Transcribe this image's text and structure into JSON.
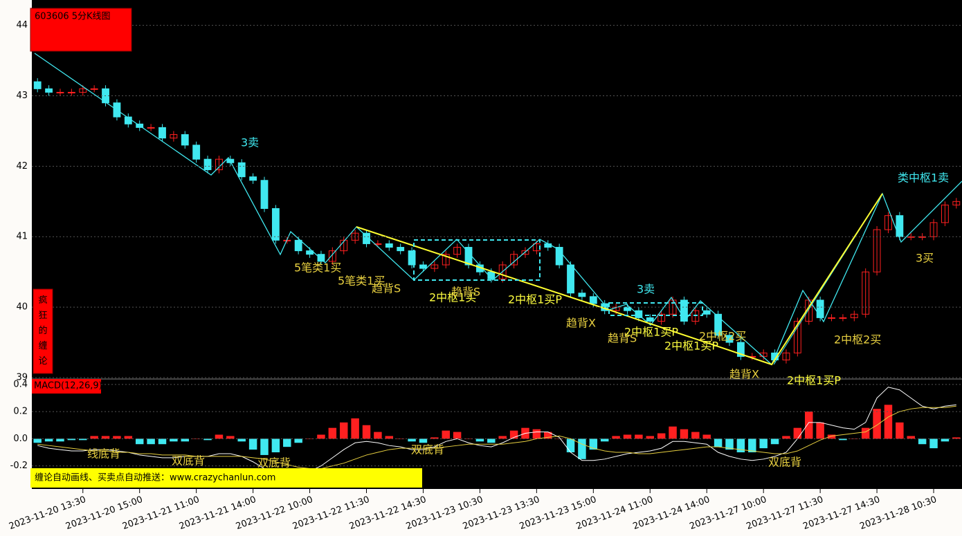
{
  "chart_data": [
    {
      "type": "candlestick",
      "title": "603606 5分K线图",
      "side_label": "疯狂的缠论",
      "categories": [
        null,
        null,
        null,
        null,
        "2023-11-20 13:30",
        null,
        null,
        null,
        null,
        "2023-11-20 15:00",
        null,
        null,
        null,
        null,
        "2023-11-21 11:00",
        null,
        null,
        null,
        null,
        "2023-11-21 14:00",
        null,
        null,
        null,
        null,
        "2023-11-22 10:00",
        null,
        null,
        null,
        null,
        "2023-11-22 11:30",
        null,
        null,
        null,
        null,
        "2023-11-22 14:30",
        null,
        null,
        null,
        null,
        "2023-11-23 10:30",
        null,
        null,
        null,
        null,
        "2023-11-23 13:30",
        null,
        null,
        null,
        null,
        "2023-11-23 15:00",
        null,
        null,
        null,
        null,
        "2023-11-24 11:00",
        null,
        null,
        null,
        null,
        "2023-11-24 14:00",
        null,
        null,
        null,
        null,
        "2023-11-27 10:00",
        null,
        null,
        null,
        null,
        "2023-11-27 11:30",
        null,
        null,
        null,
        null,
        "2023-11-27 14:30",
        null,
        null,
        null,
        null,
        "2023-11-28 10:30",
        null,
        null
      ],
      "open": [
        43.2,
        43.1,
        43.05,
        43.05,
        43.05,
        43.1,
        43.1,
        42.9,
        42.7,
        42.6,
        42.55,
        42.55,
        42.4,
        42.45,
        42.3,
        42.1,
        41.95,
        42.1,
        42.05,
        41.85,
        41.8,
        41.4,
        40.95,
        40.95,
        40.8,
        40.75,
        40.65,
        40.8,
        40.95,
        41.05,
        40.9,
        40.9,
        40.85,
        40.8,
        40.6,
        40.55,
        40.6,
        40.75,
        40.85,
        40.6,
        40.5,
        40.4,
        40.6,
        40.75,
        40.8,
        40.9,
        40.85,
        40.6,
        40.2,
        40.15,
        40.05,
        39.95,
        40.0,
        39.95,
        39.85,
        39.8,
        39.9,
        40.1,
        39.8,
        39.95,
        39.9,
        39.6,
        39.5,
        39.3,
        39.3,
        39.35,
        39.25,
        39.35,
        39.8,
        40.1,
        39.85,
        39.85,
        39.85,
        39.9,
        40.5,
        41.1,
        41.3,
        41.0,
        41.0,
        41.0,
        41.2,
        41.45
      ],
      "high": [
        43.25,
        43.15,
        43.1,
        43.1,
        43.15,
        43.15,
        43.15,
        42.95,
        42.75,
        42.65,
        42.6,
        42.6,
        42.5,
        42.5,
        42.35,
        42.15,
        42.15,
        42.15,
        42.1,
        41.9,
        41.85,
        41.45,
        41.0,
        41.0,
        40.85,
        40.8,
        40.85,
        41.0,
        41.1,
        41.1,
        40.95,
        40.95,
        40.9,
        40.85,
        40.65,
        40.65,
        40.8,
        40.9,
        40.9,
        40.65,
        40.55,
        40.65,
        40.8,
        40.85,
        40.95,
        40.95,
        40.9,
        40.65,
        40.25,
        40.2,
        40.1,
        40.05,
        40.05,
        40.0,
        39.9,
        39.95,
        40.15,
        40.15,
        40.0,
        40.0,
        39.95,
        39.65,
        39.55,
        39.35,
        39.4,
        39.4,
        39.4,
        39.85,
        40.15,
        40.15,
        39.9,
        39.9,
        39.95,
        40.55,
        41.15,
        41.35,
        41.35,
        41.05,
        41.05,
        41.25,
        41.5,
        41.55
      ],
      "low": [
        43.05,
        43.0,
        43.0,
        43.0,
        43.0,
        43.05,
        42.85,
        42.65,
        42.55,
        42.5,
        42.5,
        42.35,
        42.35,
        42.25,
        42.05,
        41.9,
        41.9,
        42.0,
        41.8,
        41.75,
        41.35,
        40.9,
        40.9,
        40.75,
        40.7,
        40.6,
        40.6,
        40.75,
        40.9,
        40.85,
        40.85,
        40.8,
        40.75,
        40.55,
        40.5,
        40.5,
        40.55,
        40.7,
        40.55,
        40.45,
        40.35,
        40.35,
        40.55,
        40.7,
        40.75,
        40.8,
        40.55,
        40.15,
        40.1,
        40.0,
        39.9,
        39.9,
        39.9,
        39.8,
        39.75,
        39.75,
        39.85,
        39.75,
        39.75,
        39.85,
        39.55,
        39.45,
        39.25,
        39.25,
        39.25,
        39.2,
        39.2,
        39.3,
        39.75,
        39.8,
        39.8,
        39.8,
        39.8,
        39.85,
        40.45,
        41.05,
        40.95,
        40.95,
        40.95,
        40.95,
        41.15,
        41.4
      ],
      "close": [
        43.1,
        43.05,
        43.05,
        43.05,
        43.1,
        43.1,
        42.9,
        42.7,
        42.6,
        42.55,
        42.55,
        42.4,
        42.45,
        42.3,
        42.1,
        41.95,
        42.1,
        42.05,
        41.85,
        41.8,
        41.4,
        40.95,
        40.95,
        40.8,
        40.75,
        40.65,
        40.8,
        40.95,
        41.05,
        40.9,
        40.9,
        40.85,
        40.8,
        40.6,
        40.55,
        40.6,
        40.75,
        40.85,
        40.6,
        40.5,
        40.4,
        40.6,
        40.75,
        40.8,
        40.9,
        40.85,
        40.6,
        40.2,
        40.15,
        40.05,
        39.95,
        40.0,
        39.95,
        39.85,
        39.8,
        39.9,
        40.1,
        39.8,
        39.95,
        39.9,
        39.6,
        39.5,
        39.3,
        39.3,
        39.35,
        39.25,
        39.35,
        39.8,
        40.1,
        39.85,
        39.85,
        39.85,
        39.9,
        40.5,
        41.1,
        41.3,
        41.0,
        41.0,
        41.0,
        41.2,
        41.45,
        41.5
      ],
      "up_color": "#ff2020",
      "down_color": "#40e8f0",
      "ylim": [
        38.98,
        44.36
      ],
      "yticks": [
        39,
        40,
        41,
        42,
        43,
        44
      ],
      "grid": true,
      "annotations": [
        "3卖",
        "5笔类1买",
        "5笔类1买",
        "趋背S",
        "2中枢1买",
        "趋背S",
        "2中枢1买P",
        "趋背X",
        "3卖",
        "2中枢1买P",
        "趋背S",
        "2中枢1买P",
        "2中枢2买",
        "趋背X",
        "2中枢1买P",
        "2中枢2买",
        "类中枢1卖",
        "3买"
      ]
    },
    {
      "type": "macd",
      "title": "MACD(12,26,9)",
      "histogram": [
        -0.03,
        -0.02,
        -0.02,
        -0.01,
        -0.01,
        0.02,
        0.02,
        0.02,
        0.02,
        -0.04,
        -0.04,
        -0.04,
        -0.02,
        -0.02,
        0.0,
        -0.01,
        0.03,
        0.02,
        -0.02,
        -0.08,
        -0.12,
        -0.1,
        -0.06,
        -0.03,
        0.0,
        0.03,
        0.08,
        0.12,
        0.15,
        0.1,
        0.05,
        0.02,
        0.0,
        -0.02,
        -0.03,
        0.01,
        0.06,
        0.05,
        0.0,
        -0.02,
        -0.03,
        0.02,
        0.06,
        0.08,
        0.07,
        0.05,
        0.0,
        -0.1,
        -0.15,
        -0.08,
        -0.02,
        0.02,
        0.03,
        0.03,
        0.02,
        0.04,
        0.09,
        0.07,
        0.05,
        0.03,
        -0.06,
        -0.08,
        -0.1,
        -0.1,
        -0.07,
        -0.04,
        0.02,
        0.08,
        0.2,
        0.12,
        0.03,
        -0.01,
        0.0,
        0.08,
        0.22,
        0.25,
        0.12,
        0.02,
        -0.04,
        -0.07,
        -0.02,
        0.01
      ],
      "dif": [
        -0.05,
        -0.07,
        -0.08,
        -0.09,
        -0.09,
        -0.08,
        -0.08,
        -0.09,
        -0.1,
        -0.12,
        -0.13,
        -0.14,
        -0.14,
        -0.13,
        -0.13,
        -0.13,
        -0.11,
        -0.11,
        -0.13,
        -0.17,
        -0.22,
        -0.26,
        -0.27,
        -0.26,
        -0.24,
        -0.2,
        -0.14,
        -0.08,
        -0.03,
        -0.02,
        -0.03,
        -0.05,
        -0.06,
        -0.08,
        -0.08,
        -0.06,
        -0.02,
        0.0,
        -0.03,
        -0.05,
        -0.06,
        -0.03,
        0.01,
        0.04,
        0.05,
        0.05,
        0.01,
        -0.1,
        -0.16,
        -0.16,
        -0.15,
        -0.13,
        -0.11,
        -0.1,
        -0.09,
        -0.07,
        -0.02,
        -0.02,
        -0.03,
        -0.04,
        -0.1,
        -0.13,
        -0.15,
        -0.16,
        -0.15,
        -0.13,
        -0.1,
        0.0,
        0.12,
        0.12,
        0.1,
        0.08,
        0.07,
        0.12,
        0.3,
        0.38,
        0.36,
        0.3,
        0.24,
        0.22,
        0.24,
        0.25
      ],
      "dea": [
        -0.04,
        -0.05,
        -0.06,
        -0.07,
        -0.08,
        -0.09,
        -0.09,
        -0.1,
        -0.1,
        -0.11,
        -0.11,
        -0.12,
        -0.12,
        -0.12,
        -0.13,
        -0.13,
        -0.13,
        -0.13,
        -0.13,
        -0.14,
        -0.15,
        -0.17,
        -0.19,
        -0.21,
        -0.22,
        -0.22,
        -0.2,
        -0.18,
        -0.15,
        -0.12,
        -0.1,
        -0.08,
        -0.07,
        -0.07,
        -0.07,
        -0.07,
        -0.06,
        -0.05,
        -0.04,
        -0.04,
        -0.04,
        -0.04,
        -0.03,
        -0.02,
        0.0,
        0.01,
        0.02,
        0.0,
        -0.04,
        -0.07,
        -0.09,
        -0.1,
        -0.1,
        -0.11,
        -0.11,
        -0.1,
        -0.09,
        -0.08,
        -0.07,
        -0.06,
        -0.06,
        -0.07,
        -0.08,
        -0.09,
        -0.1,
        -0.11,
        -0.11,
        -0.09,
        -0.05,
        -0.01,
        0.02,
        0.03,
        0.04,
        0.05,
        0.1,
        0.16,
        0.2,
        0.22,
        0.23,
        0.23,
        0.23,
        0.24
      ],
      "ylim": [
        -0.37,
        0.44
      ],
      "yticks": [
        {
          "value": 0.4,
          "label": "0.4"
        },
        {
          "value": 0.2,
          "label": "0.2"
        },
        {
          "value": 0,
          "label": "0.0"
        },
        {
          "value": -0.2,
          "label": "-0.2"
        }
      ],
      "grid": true,
      "annotations": [
        "线底背",
        "双底背",
        "双底背",
        "双底背",
        "双底背"
      ]
    }
  ],
  "banner": "缠论自动画线、买卖点自动推送：www.crazychanlun.com"
}
